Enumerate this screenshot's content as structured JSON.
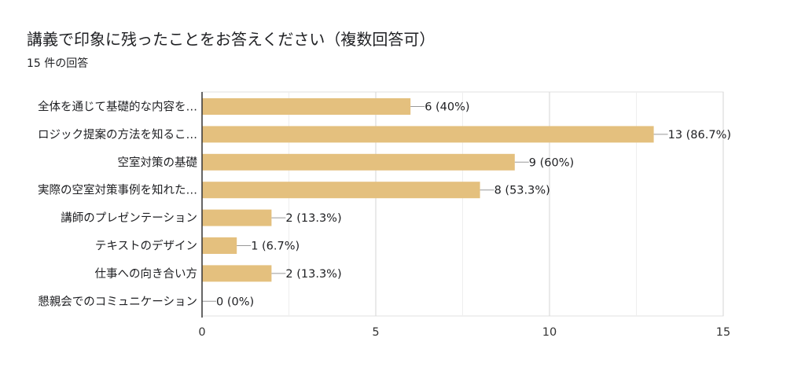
{
  "title": "講義で印象に残ったことをお答えください（複数回答可）",
  "subtitle": "15 件の回答",
  "colors": {
    "bar": "#e4c07e",
    "grid": "#e0e0e0",
    "axis": "#333333",
    "leader": "#999999"
  },
  "chart_data": {
    "type": "bar",
    "orientation": "horizontal",
    "categories": [
      "全体を通じて基礎的な内容を…",
      "ロジック提案の方法を知るこ…",
      "空室対策の基礎",
      "実際の空室対策事例を知れた…",
      "講師のプレゼンテーション",
      "テキストのデザイン",
      "仕事への向き合い方",
      "懇親会でのコミュニケーション"
    ],
    "values": [
      6,
      13,
      9,
      8,
      2,
      1,
      2,
      0
    ],
    "value_labels": [
      "6 (40%)",
      "13 (86.7%)",
      "9 (60%)",
      "8 (53.3%)",
      "2 (13.3%)",
      "1 (6.7%)",
      "2 (13.3%)",
      "0 (0%)"
    ],
    "xlim": [
      0,
      15
    ],
    "xticks": [
      0,
      5,
      10,
      15
    ],
    "xtick_labels": [
      "0",
      "5",
      "10",
      "15"
    ],
    "grid": true
  }
}
